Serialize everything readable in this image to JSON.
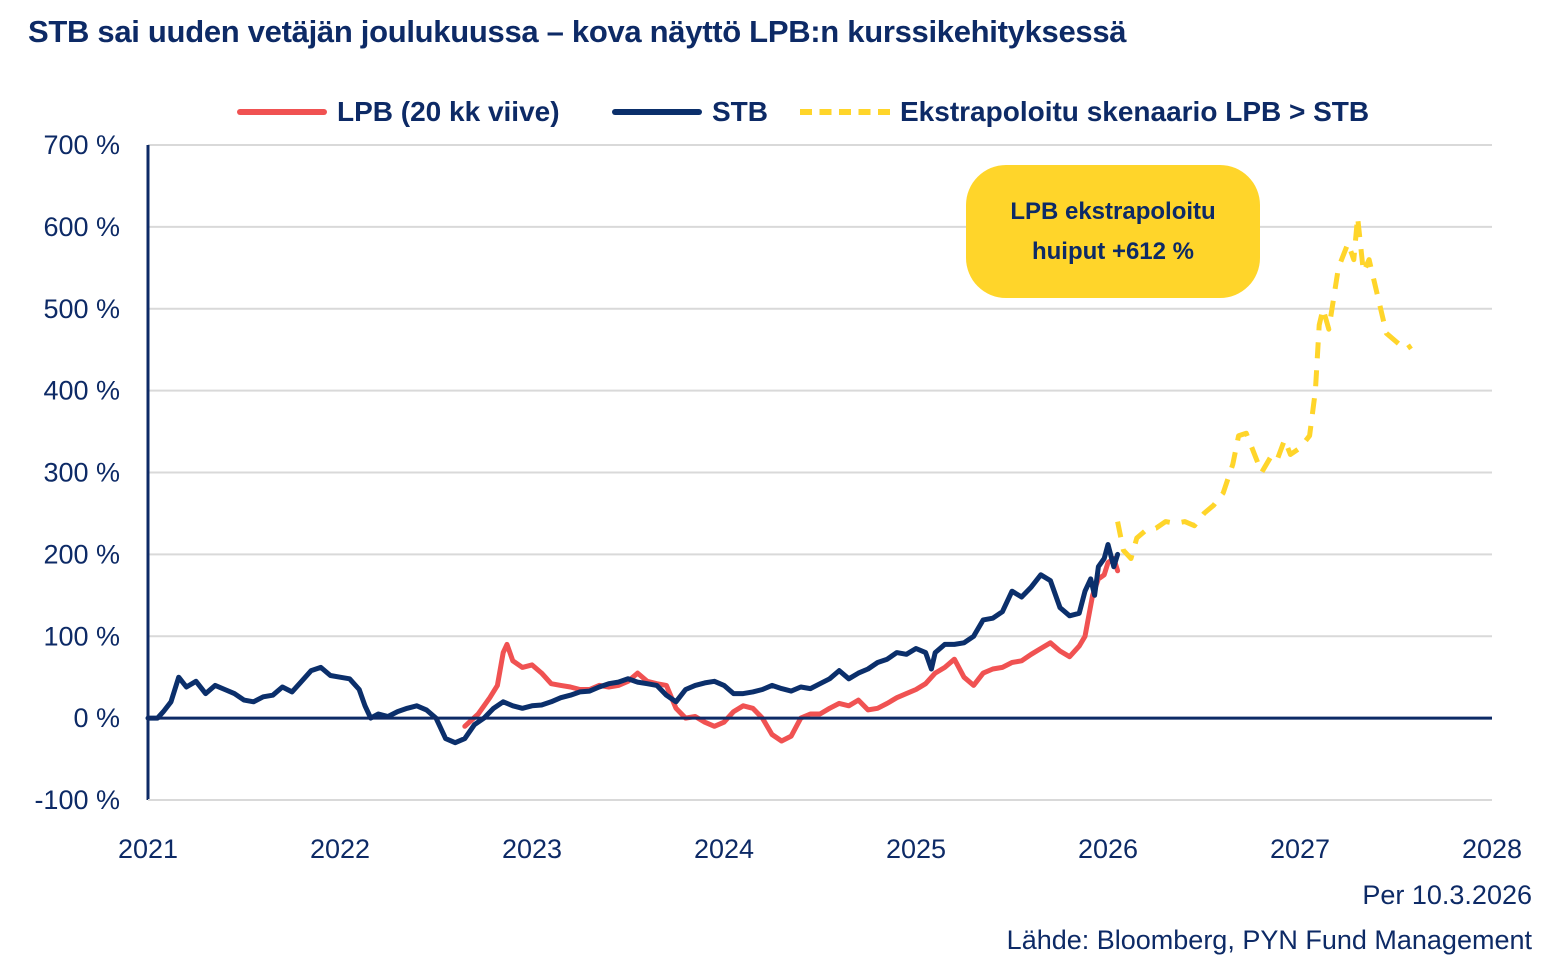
{
  "title": "STB sai uuden vetäjän joulukuussa – kova näyttö LPB:n kurssikehityksessä",
  "legend": {
    "lpb": "LPB (20 kk viive)",
    "stb": "STB",
    "extrapolated": "Ekstrapoloitu skenaario LPB > STB"
  },
  "annotation": {
    "line1": "LPB ekstrapoloitu",
    "line2": "huiput +612 %"
  },
  "footer": {
    "as_of": "Per 10.3.2026",
    "source": "Lähde: Bloomberg, PYN Fund Management"
  },
  "colors": {
    "lpb": "#f05252",
    "stb": "#0b2f6b",
    "extrapolated": "#ffd52a",
    "axis": "#0d2a66",
    "grid": "#d9d9d9"
  },
  "chart_data": {
    "type": "line",
    "title": "STB sai uuden vetäjän joulukuussa – kova näyttö LPB:n kurssikehityksessä",
    "xlabel": "",
    "ylabel": "",
    "xlim": [
      2021,
      2028
    ],
    "ylim": [
      -100,
      700
    ],
    "grid": true,
    "legend_position": "top",
    "x_tick_labels": [
      "2021",
      "2022",
      "2023",
      "2024",
      "2025",
      "2026",
      "2027",
      "2028"
    ],
    "x_tick_values": [
      2021,
      2022,
      2023,
      2024,
      2025,
      2026,
      2027,
      2028
    ],
    "y_tick_labels": [
      "-100 %",
      "0 %",
      "100 %",
      "200 %",
      "300 %",
      "400 %",
      "500 %",
      "600 %",
      "700 %"
    ],
    "y_tick_values": [
      -100,
      0,
      100,
      200,
      300,
      400,
      500,
      600,
      700
    ],
    "series": [
      {
        "name": "STB",
        "style": "solid",
        "points": [
          [
            2021.0,
            0
          ],
          [
            2021.05,
            0
          ],
          [
            2021.08,
            8
          ],
          [
            2021.12,
            20
          ],
          [
            2021.16,
            50
          ],
          [
            2021.2,
            38
          ],
          [
            2021.25,
            45
          ],
          [
            2021.3,
            30
          ],
          [
            2021.35,
            40
          ],
          [
            2021.4,
            35
          ],
          [
            2021.45,
            30
          ],
          [
            2021.5,
            22
          ],
          [
            2021.55,
            20
          ],
          [
            2021.6,
            26
          ],
          [
            2021.65,
            28
          ],
          [
            2021.7,
            38
          ],
          [
            2021.75,
            32
          ],
          [
            2021.8,
            45
          ],
          [
            2021.85,
            58
          ],
          [
            2021.9,
            62
          ],
          [
            2021.95,
            52
          ],
          [
            2022.0,
            50
          ],
          [
            2022.05,
            48
          ],
          [
            2022.1,
            35
          ],
          [
            2022.13,
            15
          ],
          [
            2022.16,
            0
          ],
          [
            2022.2,
            5
          ],
          [
            2022.25,
            2
          ],
          [
            2022.3,
            8
          ],
          [
            2022.35,
            12
          ],
          [
            2022.4,
            15
          ],
          [
            2022.45,
            10
          ],
          [
            2022.5,
            0
          ],
          [
            2022.55,
            -25
          ],
          [
            2022.6,
            -30
          ],
          [
            2022.65,
            -25
          ],
          [
            2022.7,
            -8
          ],
          [
            2022.75,
            0
          ],
          [
            2022.8,
            12
          ],
          [
            2022.85,
            20
          ],
          [
            2022.9,
            15
          ],
          [
            2022.95,
            12
          ],
          [
            2023.0,
            15
          ],
          [
            2023.05,
            16
          ],
          [
            2023.1,
            20
          ],
          [
            2023.15,
            25
          ],
          [
            2023.2,
            28
          ],
          [
            2023.25,
            32
          ],
          [
            2023.3,
            33
          ],
          [
            2023.35,
            38
          ],
          [
            2023.4,
            42
          ],
          [
            2023.45,
            44
          ],
          [
            2023.5,
            48
          ],
          [
            2023.55,
            44
          ],
          [
            2023.6,
            42
          ],
          [
            2023.65,
            40
          ],
          [
            2023.7,
            28
          ],
          [
            2023.75,
            20
          ],
          [
            2023.8,
            35
          ],
          [
            2023.85,
            40
          ],
          [
            2023.9,
            43
          ],
          [
            2023.95,
            45
          ],
          [
            2024.0,
            40
          ],
          [
            2024.05,
            30
          ],
          [
            2024.1,
            30
          ],
          [
            2024.15,
            32
          ],
          [
            2024.2,
            35
          ],
          [
            2024.25,
            40
          ],
          [
            2024.3,
            36
          ],
          [
            2024.35,
            33
          ],
          [
            2024.4,
            38
          ],
          [
            2024.45,
            36
          ],
          [
            2024.5,
            42
          ],
          [
            2024.55,
            48
          ],
          [
            2024.6,
            58
          ],
          [
            2024.65,
            48
          ],
          [
            2024.7,
            55
          ],
          [
            2024.75,
            60
          ],
          [
            2024.8,
            68
          ],
          [
            2024.85,
            72
          ],
          [
            2024.9,
            80
          ],
          [
            2024.95,
            78
          ],
          [
            2025.0,
            85
          ],
          [
            2025.05,
            80
          ],
          [
            2025.08,
            60
          ],
          [
            2025.1,
            80
          ],
          [
            2025.15,
            90
          ],
          [
            2025.2,
            90
          ],
          [
            2025.25,
            92
          ],
          [
            2025.3,
            100
          ],
          [
            2025.35,
            120
          ],
          [
            2025.4,
            122
          ],
          [
            2025.45,
            130
          ],
          [
            2025.5,
            155
          ],
          [
            2025.55,
            148
          ],
          [
            2025.6,
            160
          ],
          [
            2025.65,
            175
          ],
          [
            2025.7,
            168
          ],
          [
            2025.75,
            135
          ],
          [
            2025.8,
            125
          ],
          [
            2025.85,
            128
          ],
          [
            2025.88,
            155
          ],
          [
            2025.91,
            170
          ],
          [
            2025.93,
            150
          ],
          [
            2025.95,
            185
          ],
          [
            2025.98,
            195
          ],
          [
            2026.0,
            212
          ],
          [
            2026.03,
            185
          ],
          [
            2026.05,
            200
          ]
        ]
      },
      {
        "name": "LPB (20 kk viive)",
        "style": "solid",
        "points": [
          [
            2022.65,
            -10
          ],
          [
            2022.72,
            5
          ],
          [
            2022.78,
            25
          ],
          [
            2022.82,
            40
          ],
          [
            2022.85,
            80
          ],
          [
            2022.87,
            90
          ],
          [
            2022.9,
            70
          ],
          [
            2022.95,
            62
          ],
          [
            2023.0,
            65
          ],
          [
            2023.05,
            55
          ],
          [
            2023.1,
            42
          ],
          [
            2023.15,
            40
          ],
          [
            2023.2,
            38
          ],
          [
            2023.25,
            35
          ],
          [
            2023.3,
            35
          ],
          [
            2023.35,
            40
          ],
          [
            2023.4,
            38
          ],
          [
            2023.45,
            40
          ],
          [
            2023.5,
            45
          ],
          [
            2023.55,
            55
          ],
          [
            2023.6,
            45
          ],
          [
            2023.65,
            42
          ],
          [
            2023.7,
            40
          ],
          [
            2023.75,
            12
          ],
          [
            2023.8,
            0
          ],
          [
            2023.85,
            2
          ],
          [
            2023.9,
            -5
          ],
          [
            2023.95,
            -10
          ],
          [
            2024.0,
            -5
          ],
          [
            2024.05,
            8
          ],
          [
            2024.1,
            15
          ],
          [
            2024.15,
            12
          ],
          [
            2024.2,
            0
          ],
          [
            2024.25,
            -20
          ],
          [
            2024.3,
            -28
          ],
          [
            2024.35,
            -22
          ],
          [
            2024.4,
            0
          ],
          [
            2024.45,
            5
          ],
          [
            2024.5,
            5
          ],
          [
            2024.55,
            12
          ],
          [
            2024.6,
            18
          ],
          [
            2024.65,
            15
          ],
          [
            2024.7,
            22
          ],
          [
            2024.75,
            10
          ],
          [
            2024.8,
            12
          ],
          [
            2024.85,
            18
          ],
          [
            2024.9,
            25
          ],
          [
            2024.95,
            30
          ],
          [
            2025.0,
            35
          ],
          [
            2025.05,
            42
          ],
          [
            2025.1,
            55
          ],
          [
            2025.15,
            62
          ],
          [
            2025.2,
            72
          ],
          [
            2025.25,
            50
          ],
          [
            2025.3,
            40
          ],
          [
            2025.35,
            55
          ],
          [
            2025.4,
            60
          ],
          [
            2025.45,
            62
          ],
          [
            2025.5,
            68
          ],
          [
            2025.55,
            70
          ],
          [
            2025.6,
            78
          ],
          [
            2025.65,
            85
          ],
          [
            2025.7,
            92
          ],
          [
            2025.75,
            82
          ],
          [
            2025.8,
            75
          ],
          [
            2025.85,
            88
          ],
          [
            2025.88,
            100
          ],
          [
            2025.92,
            150
          ],
          [
            2025.95,
            170
          ],
          [
            2025.98,
            175
          ],
          [
            2026.0,
            190
          ],
          [
            2026.03,
            195
          ],
          [
            2026.05,
            180
          ]
        ]
      },
      {
        "name": "Ekstrapoloitu skenaario LPB > STB",
        "style": "dashed",
        "points": [
          [
            2026.05,
            240
          ],
          [
            2026.08,
            205
          ],
          [
            2026.12,
            195
          ],
          [
            2026.15,
            220
          ],
          [
            2026.2,
            230
          ],
          [
            2026.25,
            232
          ],
          [
            2026.3,
            240
          ],
          [
            2026.35,
            238
          ],
          [
            2026.4,
            240
          ],
          [
            2026.45,
            235
          ],
          [
            2026.5,
            250
          ],
          [
            2026.55,
            260
          ],
          [
            2026.6,
            275
          ],
          [
            2026.65,
            310
          ],
          [
            2026.68,
            345
          ],
          [
            2026.72,
            348
          ],
          [
            2026.75,
            330
          ],
          [
            2026.8,
            300
          ],
          [
            2026.85,
            320
          ],
          [
            2026.88,
            315
          ],
          [
            2026.92,
            340
          ],
          [
            2026.95,
            322
          ],
          [
            2027.0,
            330
          ],
          [
            2027.05,
            345
          ],
          [
            2027.08,
            400
          ],
          [
            2027.1,
            480
          ],
          [
            2027.12,
            500
          ],
          [
            2027.15,
            475
          ],
          [
            2027.2,
            550
          ],
          [
            2027.25,
            580
          ],
          [
            2027.28,
            560
          ],
          [
            2027.3,
            612
          ],
          [
            2027.33,
            545
          ],
          [
            2027.36,
            560
          ],
          [
            2027.4,
            520
          ],
          [
            2027.45,
            470
          ],
          [
            2027.5,
            460
          ],
          [
            2027.55,
            450
          ],
          [
            2027.58,
            455
          ]
        ]
      }
    ],
    "annotations": [
      {
        "text": "LPB ekstrapoloitu huiput +612 %",
        "anchor": "top-right of plot"
      }
    ]
  }
}
